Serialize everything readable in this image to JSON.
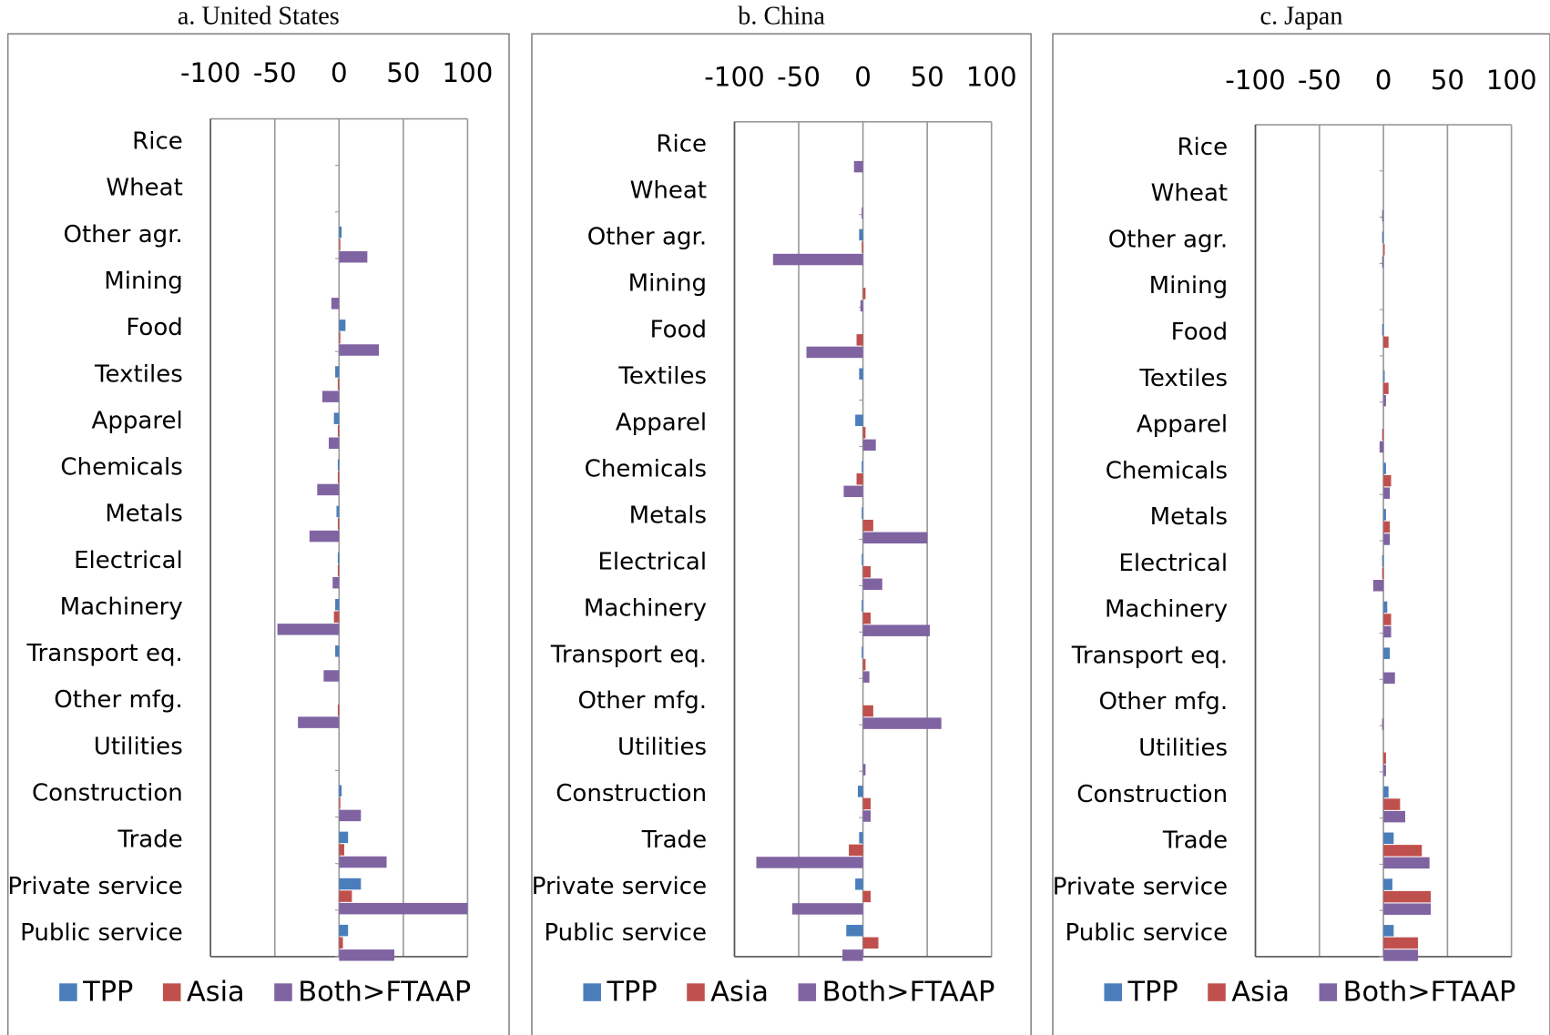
{
  "chart_data": [
    {
      "type": "bar",
      "orientation": "horizontal",
      "title": "a. United States",
      "categories": [
        "Rice",
        "Wheat",
        "Other agr.",
        "Mining",
        "Food",
        "Textiles",
        "Apparel",
        "Chemicals",
        "Metals",
        "Electrical",
        "Machinery",
        "Transport eq.",
        "Other mfg.",
        "Utilities",
        "Construction",
        "Trade",
        "Private service",
        "Public service"
      ],
      "series": [
        {
          "name": "TPP",
          "color": "#4a7ebb",
          "values": [
            0,
            0,
            2,
            0,
            5,
            -3,
            -4,
            -1,
            -2,
            -1,
            -3,
            -3,
            0,
            0,
            2,
            7,
            17,
            7
          ]
        },
        {
          "name": "Asia",
          "color": "#c0504d",
          "values": [
            0,
            0,
            1,
            0,
            1,
            -1,
            -1,
            -1,
            -1,
            -1,
            -4,
            0,
            -1,
            0,
            1,
            4,
            10,
            3
          ]
        },
        {
          "name": "Both>FTAAP",
          "color": "#8064a2",
          "values": [
            0,
            0,
            22,
            -6,
            31,
            -13,
            -8,
            -17,
            -23,
            -5,
            -48,
            -12,
            -32,
            0,
            17,
            37,
            100,
            43
          ]
        }
      ],
      "xlim": [
        -100,
        100
      ],
      "xticks": [
        -100,
        -50,
        0,
        50,
        100
      ],
      "grid": true,
      "legend": "bottom"
    },
    {
      "type": "bar",
      "orientation": "horizontal",
      "title": "b. China",
      "categories": [
        "Rice",
        "Wheat",
        "Other agr.",
        "Mining",
        "Food",
        "Textiles",
        "Apparel",
        "Chemicals",
        "Metals",
        "Electrical",
        "Machinery",
        "Transport eq.",
        "Other mfg.",
        "Utilities",
        "Construction",
        "Trade",
        "Private service",
        "Public service"
      ],
      "series": [
        {
          "name": "TPP",
          "color": "#4a7ebb",
          "values": [
            0,
            0,
            -3,
            0,
            0,
            -3,
            -6,
            -1,
            -1,
            -1,
            -1,
            -1,
            0,
            0,
            -4,
            -3,
            -6,
            -13
          ]
        },
        {
          "name": "Asia",
          "color": "#c0504d",
          "values": [
            0,
            0,
            -1,
            2,
            -5,
            0,
            2,
            -5,
            8,
            6,
            6,
            2,
            8,
            0,
            6,
            -11,
            6,
            12
          ]
        },
        {
          "name": "Both>FTAAP",
          "color": "#8064a2",
          "values": [
            -7,
            -1,
            -70,
            -2,
            -44,
            0,
            10,
            -15,
            50,
            15,
            52,
            5,
            61,
            2,
            6,
            -83,
            -55,
            -16
          ]
        }
      ],
      "xlim": [
        -100,
        100
      ],
      "xticks": [
        -100,
        -50,
        0,
        50,
        100
      ],
      "grid": true,
      "legend": "bottom"
    },
    {
      "type": "bar",
      "orientation": "horizontal",
      "title": "c. Japan",
      "categories": [
        "Rice",
        "Wheat",
        "Other agr.",
        "Mining",
        "Food",
        "Textiles",
        "Apparel",
        "Chemicals",
        "Metals",
        "Electrical",
        "Machinery",
        "Transport eq.",
        "Other mfg.",
        "Utilities",
        "Construction",
        "Trade",
        "Private service",
        "Public service"
      ],
      "series": [
        {
          "name": "TPP",
          "color": "#4a7ebb",
          "values": [
            0,
            0,
            -1,
            0,
            -1,
            1,
            0,
            2,
            2,
            -1,
            3,
            5,
            0,
            0,
            4,
            8,
            7,
            8
          ]
        },
        {
          "name": "Asia",
          "color": "#c0504d",
          "values": [
            0,
            0,
            1,
            0,
            4,
            4,
            -1,
            6,
            5,
            -1,
            6,
            0,
            0,
            2,
            13,
            30,
            37,
            27
          ]
        },
        {
          "name": "Both>FTAAP",
          "color": "#8064a2",
          "values": [
            0,
            -1,
            -1,
            0,
            0,
            2,
            -3,
            5,
            5,
            -8,
            6,
            9,
            -1,
            2,
            17,
            36,
            37,
            27
          ]
        }
      ],
      "xlim": [
        -100,
        100
      ],
      "xticks": [
        -100,
        -50,
        0,
        50,
        100
      ],
      "grid": true,
      "legend": "bottom"
    }
  ]
}
